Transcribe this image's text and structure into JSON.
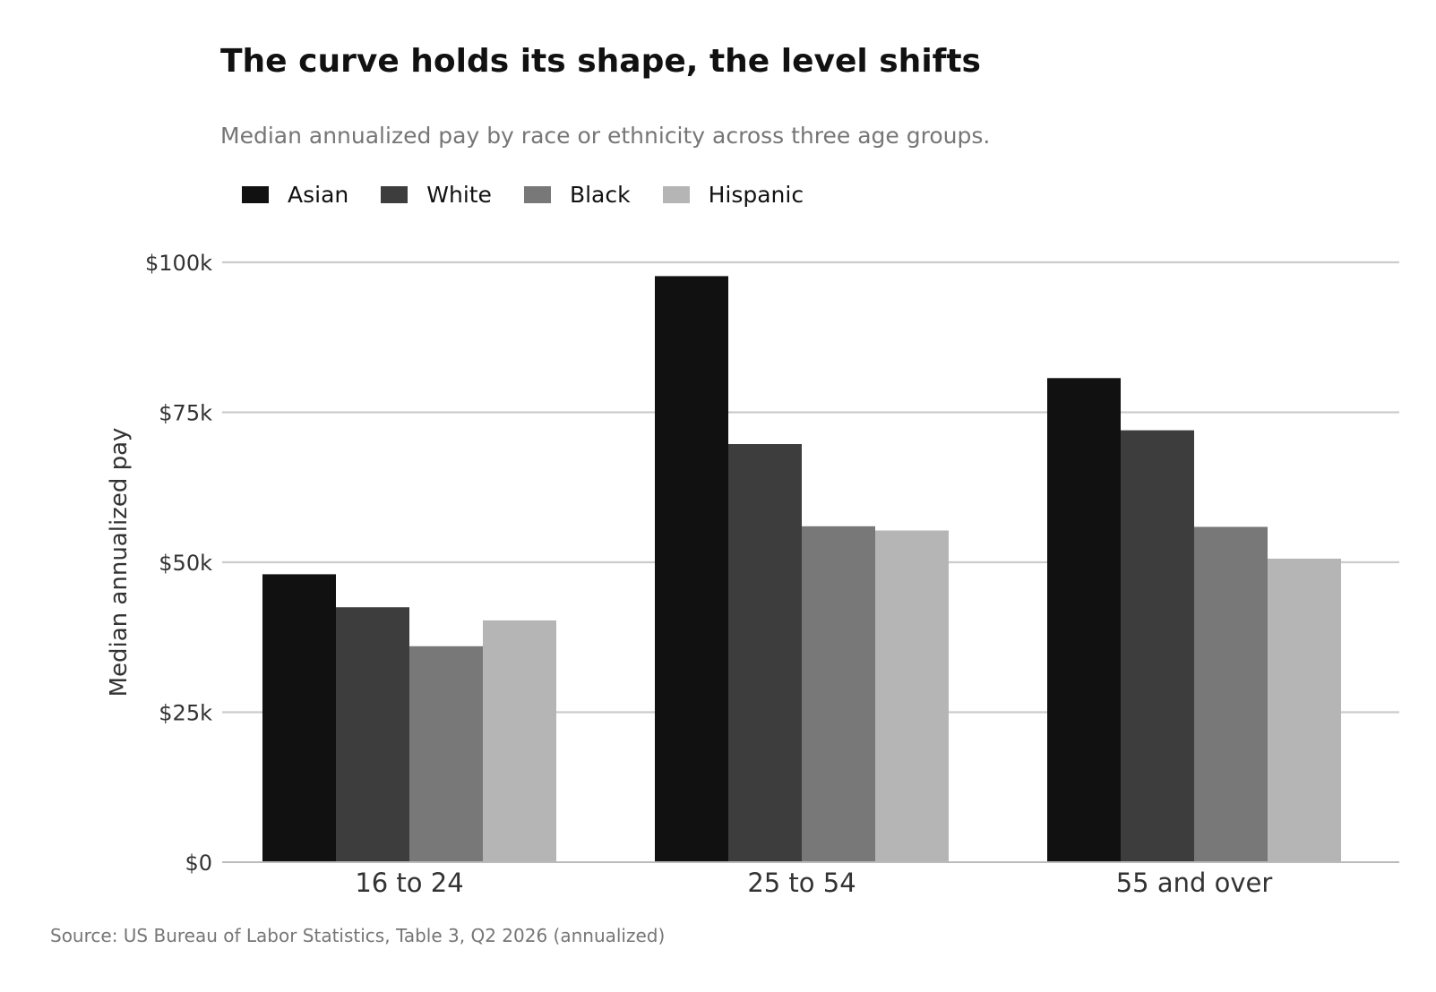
{
  "header": {
    "title": "The curve holds its shape, the level shifts",
    "subtitle": "Median annualized pay by race or ethnicity across three age groups."
  },
  "footer": {
    "source": "Source: US Bureau of Labor Statistics, Table 3, Q2 2026 (annualized)"
  },
  "chart_data": {
    "type": "bar",
    "title": "The curve holds its shape, the level shifts",
    "subtitle": "Median annualized pay by race or ethnicity across three age groups.",
    "ylabel": "Median annualized pay",
    "xlabel": "",
    "categories": [
      "16 to 24",
      "25 to 54",
      "55 and over"
    ],
    "series": [
      {
        "name": "Asian",
        "color": "#111111",
        "values": [
          48000,
          97700,
          80700
        ]
      },
      {
        "name": "White",
        "color": "#3d3d3d",
        "values": [
          42500,
          69700,
          72000
        ]
      },
      {
        "name": "Black",
        "color": "#787878",
        "values": [
          36000,
          56000,
          55900
        ]
      },
      {
        "name": "Hispanic",
        "color": "#b5b5b5",
        "values": [
          40300,
          55300,
          50600
        ]
      }
    ],
    "ylim": [
      0,
      100000
    ],
    "yticks": [
      0,
      25000,
      50000,
      75000,
      100000
    ],
    "ytick_labels": [
      "$0",
      "$25k",
      "$50k",
      "$75k",
      "$100k"
    ],
    "grid": true,
    "legend_position": "top-left"
  }
}
